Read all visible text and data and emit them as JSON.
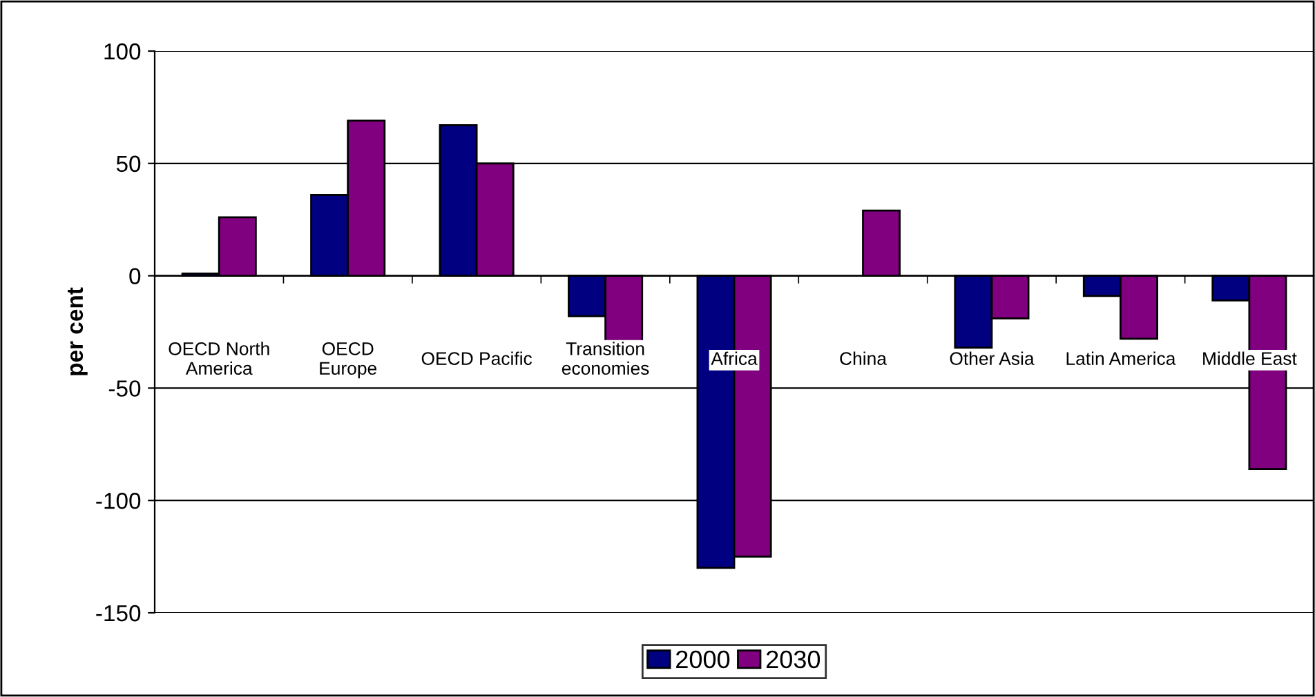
{
  "chart_data": {
    "type": "bar",
    "ylabel": "per cent",
    "categories": [
      "OECD North\nAmerica",
      "OECD\nEurope",
      "OECD Pacific",
      "Transition\neconomies",
      "Africa",
      "China",
      "Other Asia",
      "Latin America",
      "Middle East"
    ],
    "series": [
      {
        "name": "2000",
        "color": "#000080",
        "values": [
          1,
          36,
          67,
          -18,
          -130,
          null,
          -32,
          -9,
          -11
        ]
      },
      {
        "name": "2030",
        "color": "#800080",
        "values": [
          26,
          69,
          50,
          -29,
          -125,
          29,
          -19,
          -28,
          -86
        ]
      }
    ],
    "ylim": [
      -150,
      100
    ],
    "yticks": [
      -150,
      -100,
      -50,
      0,
      50,
      100
    ],
    "grid": "y",
    "legend": "bottom"
  }
}
